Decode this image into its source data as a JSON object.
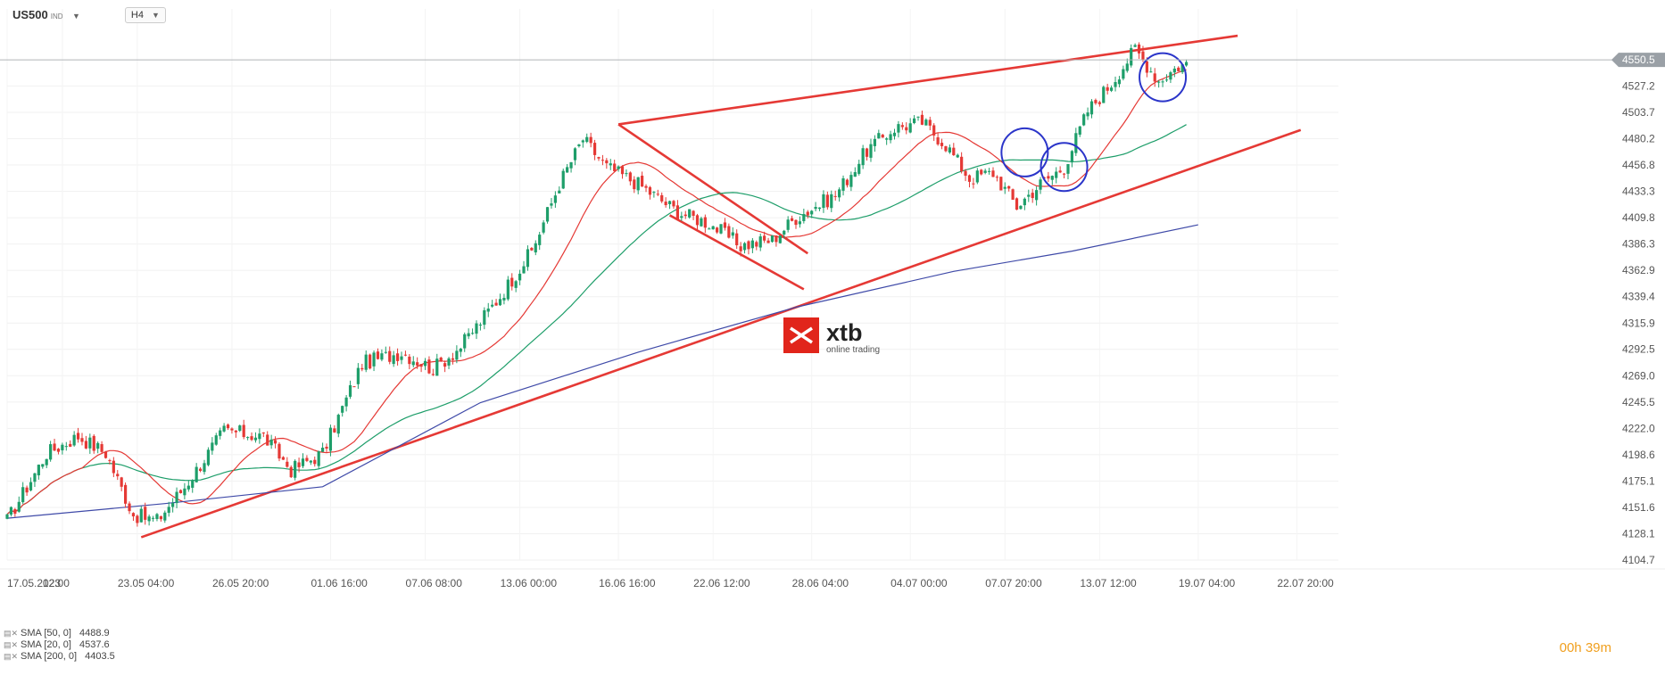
{
  "header": {
    "symbol": "US500",
    "symbol_tag": "IND",
    "timeframe": "H4"
  },
  "logo": {
    "name": "xtb",
    "tagline": "online trading",
    "color": "#e1251b"
  },
  "current_price": {
    "label": "4550.5",
    "value": 4550.5,
    "color": "#9aa0a6"
  },
  "timer": {
    "h": "00",
    "h_unit": "h",
    "m": "39",
    "m_unit": "m"
  },
  "indicators": [
    {
      "label": "SMA [50, 0]",
      "value": "4488.9",
      "color": "#1e9e6a"
    },
    {
      "label": "SMA [20, 0]",
      "value": "4537.6",
      "color": "#e53935"
    },
    {
      "label": "SMA [200, 0]",
      "value": "4403.5",
      "color": "#3f4aa8"
    }
  ],
  "chart_data": {
    "type": "candlestick",
    "instrument": "US500",
    "timeframe": "H4",
    "ylim": [
      4104.7,
      4580
    ],
    "y_ticks": [
      4527.2,
      4503.7,
      4480.2,
      4456.8,
      4433.3,
      4409.8,
      4386.3,
      4362.9,
      4339.4,
      4315.9,
      4292.5,
      4269.0,
      4245.5,
      4222.0,
      4198.6,
      4175.1,
      4151.6,
      4128.1,
      4104.7
    ],
    "x_ticks": [
      {
        "label": "17.05.2023",
        "i": 0
      },
      {
        "label": "12:00",
        "i": 14
      },
      {
        "label": "23.05  04:00",
        "i": 33
      },
      {
        "label": "26.05  20:00",
        "i": 57
      },
      {
        "label": "01.06  16:00",
        "i": 82
      },
      {
        "label": "07.06  08:00",
        "i": 106
      },
      {
        "label": "13.06  00:00",
        "i": 130
      },
      {
        "label": "16.06  16:00",
        "i": 155
      },
      {
        "label": "22.06  12:00",
        "i": 179
      },
      {
        "label": "28.06  04:00",
        "i": 204
      },
      {
        "label": "04.07  00:00",
        "i": 229
      },
      {
        "label": "07.07  20:00",
        "i": 253
      },
      {
        "label": "13.07  12:00",
        "i": 277
      },
      {
        "label": "19.07  04:00",
        "i": 302
      },
      {
        "label": "22.07  20:00",
        "i": 327
      }
    ],
    "key_points": [
      [
        0,
        4140
      ],
      [
        10,
        4200
      ],
      [
        18,
        4215
      ],
      [
        25,
        4200
      ],
      [
        32,
        4145
      ],
      [
        38,
        4140
      ],
      [
        45,
        4170
      ],
      [
        55,
        4220
      ],
      [
        65,
        4215
      ],
      [
        72,
        4185
      ],
      [
        80,
        4200
      ],
      [
        90,
        4280
      ],
      [
        100,
        4290
      ],
      [
        108,
        4275
      ],
      [
        115,
        4295
      ],
      [
        125,
        4340
      ],
      [
        133,
        4380
      ],
      [
        140,
        4440
      ],
      [
        146,
        4480
      ],
      [
        152,
        4455
      ],
      [
        160,
        4440
      ],
      [
        170,
        4415
      ],
      [
        178,
        4405
      ],
      [
        186,
        4385
      ],
      [
        194,
        4390
      ],
      [
        200,
        4410
      ],
      [
        210,
        4430
      ],
      [
        218,
        4470
      ],
      [
        225,
        4490
      ],
      [
        232,
        4495
      ],
      [
        238,
        4475
      ],
      [
        244,
        4445
      ],
      [
        250,
        4450
      ],
      [
        256,
        4420
      ],
      [
        262,
        4440
      ],
      [
        268,
        4455
      ],
      [
        274,
        4505
      ],
      [
        280,
        4530
      ],
      [
        286,
        4560
      ],
      [
        292,
        4532
      ],
      [
        297,
        4545
      ],
      [
        302,
        4550
      ]
    ],
    "candle_count": 300,
    "series": [
      {
        "name": "SMA [50, 0]",
        "period": 50,
        "color": "#1e9e6a"
      },
      {
        "name": "SMA [20, 0]",
        "period": 20,
        "color": "#e53935"
      },
      {
        "name": "SMA [200, 0]",
        "period": 200,
        "color": "#3f4aa8"
      }
    ],
    "sma200_path": [
      [
        0,
        4142
      ],
      [
        40,
        4155
      ],
      [
        80,
        4170
      ],
      [
        120,
        4245
      ],
      [
        160,
        4290
      ],
      [
        200,
        4330
      ],
      [
        240,
        4362
      ],
      [
        270,
        4380
      ],
      [
        302,
        4403.5
      ]
    ],
    "trendlines": [
      {
        "name": "lower-support",
        "from": [
          34,
          4125
        ],
        "to": [
          328,
          4488
        ],
        "color": "#e53935"
      },
      {
        "name": "upper-resistance",
        "from": [
          155,
          4493
        ],
        "to": [
          312,
          4572
        ],
        "color": "#e53935"
      },
      {
        "name": "channel-upper",
        "from": [
          155,
          4493
        ],
        "to": [
          203,
          4378
        ],
        "color": "#e53935"
      },
      {
        "name": "channel-lower",
        "from": [
          168,
          4412
        ],
        "to": [
          202,
          4346
        ],
        "color": "#e53935"
      }
    ],
    "circles": [
      {
        "i": 258,
        "price": 4468
      },
      {
        "i": 268,
        "price": 4455
      },
      {
        "i": 293,
        "price": 4535
      }
    ],
    "bull_color": "#1e9e6a",
    "bear_color": "#e53935"
  }
}
